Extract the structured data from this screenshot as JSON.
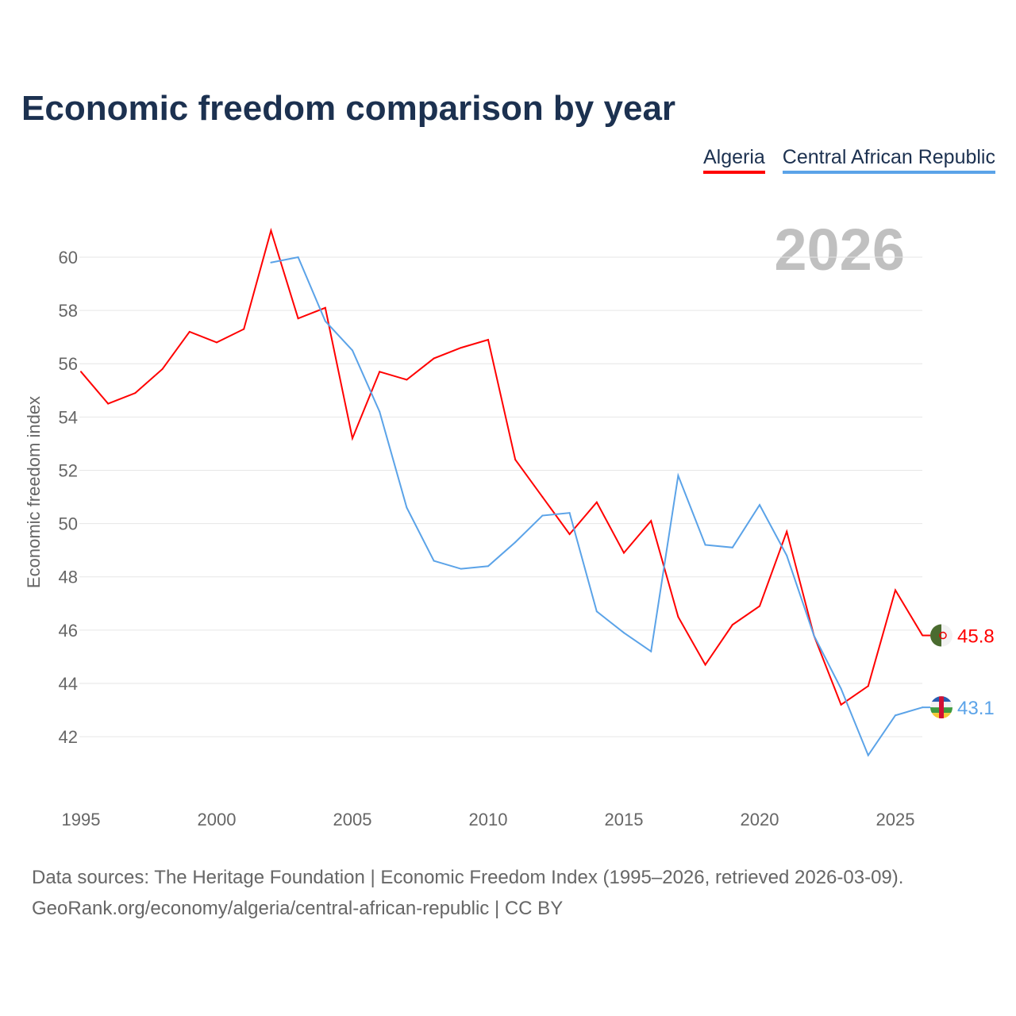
{
  "chart_data": {
    "type": "line",
    "title": "Economic freedom comparison by year",
    "ylabel": "Economic freedom index",
    "xlabel": "",
    "xlim": [
      1995,
      2026
    ],
    "ylim": [
      40,
      61
    ],
    "yticks": [
      42,
      44,
      46,
      48,
      50,
      52,
      54,
      56,
      58,
      60
    ],
    "xticks": [
      1995,
      2000,
      2005,
      2010,
      2015,
      2020,
      2025
    ],
    "year_label": "2026",
    "grid": true,
    "legend_placement": "top-right",
    "series": [
      {
        "name": "Algeria",
        "color": "#ff0000",
        "end_label": "45.8",
        "flag": "algeria-flag",
        "x": [
          1995,
          1996,
          1997,
          1998,
          1999,
          2000,
          2001,
          2002,
          2003,
          2004,
          2005,
          2006,
          2007,
          2008,
          2009,
          2010,
          2011,
          2012,
          2013,
          2014,
          2015,
          2016,
          2017,
          2018,
          2019,
          2020,
          2021,
          2022,
          2023,
          2024,
          2025,
          2026
        ],
        "values": [
          55.7,
          54.5,
          54.9,
          55.8,
          57.2,
          56.8,
          57.3,
          61.0,
          57.7,
          58.1,
          53.2,
          55.7,
          55.4,
          56.2,
          56.6,
          56.9,
          52.4,
          51.0,
          49.6,
          50.8,
          48.9,
          50.1,
          46.5,
          44.7,
          46.2,
          46.9,
          49.7,
          45.8,
          43.2,
          43.9,
          47.5,
          45.8
        ]
      },
      {
        "name": "Central African Republic",
        "color": "#5ba3e8",
        "end_label": "43.1",
        "flag": "car-flag",
        "x": [
          2002,
          2003,
          2004,
          2005,
          2006,
          2007,
          2008,
          2009,
          2010,
          2011,
          2012,
          2013,
          2014,
          2015,
          2016,
          2017,
          2018,
          2019,
          2020,
          2021,
          2022,
          2023,
          2024,
          2025,
          2026
        ],
        "values": [
          59.8,
          60.0,
          57.6,
          56.5,
          54.2,
          50.6,
          48.6,
          48.3,
          48.4,
          49.3,
          50.3,
          50.4,
          46.7,
          45.9,
          45.2,
          51.8,
          49.2,
          49.1,
          50.7,
          48.8,
          45.8,
          43.8,
          41.3,
          42.8,
          43.1
        ]
      }
    ]
  },
  "footer": {
    "line1": "Data sources: The Heritage Foundation | Economic Freedom Index (1995–2026, retrieved 2026-03-09).",
    "line2": "GeoRank.org/economy/algeria/central-african-republic | CC BY"
  }
}
